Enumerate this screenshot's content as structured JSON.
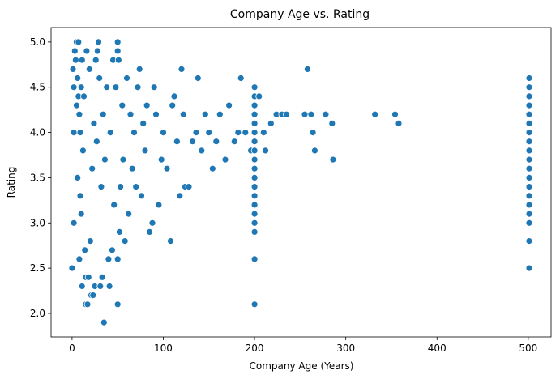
{
  "chart_data": {
    "type": "scatter",
    "title": "Company Age vs. Rating",
    "xlabel": "Company Age (Years)",
    "ylabel": "Rating",
    "xlim": [
      -23,
      525
    ],
    "ylim": [
      1.74,
      5.16
    ],
    "xticks": [
      "0",
      "100",
      "200",
      "300",
      "400",
      "500"
    ],
    "yticks": [
      "2.0",
      "2.5",
      "3.0",
      "3.5",
      "4.0",
      "4.5",
      "5.0"
    ],
    "grid": false,
    "legend": "none",
    "marker_color": "#1f77b4",
    "marker_edge_color": "#ffffff",
    "series": [
      {
        "points": [
          [
            0,
            2.5
          ],
          [
            1,
            4.7
          ],
          [
            2,
            4.5
          ],
          [
            2,
            4.0
          ],
          [
            2,
            3.0
          ],
          [
            3,
            4.9
          ],
          [
            4,
            4.8
          ],
          [
            5,
            5.0
          ],
          [
            5,
            4.3
          ],
          [
            6,
            4.6
          ],
          [
            6,
            3.5
          ],
          [
            7,
            5.0
          ],
          [
            7,
            4.4
          ],
          [
            8,
            4.2
          ],
          [
            8,
            2.6
          ],
          [
            9,
            4.0
          ],
          [
            9,
            3.3
          ],
          [
            10,
            4.5
          ],
          [
            10,
            3.1
          ],
          [
            11,
            4.8
          ],
          [
            11,
            2.3
          ],
          [
            12,
            3.8
          ],
          [
            13,
            4.4
          ],
          [
            14,
            2.7
          ],
          [
            15,
            2.4
          ],
          [
            15,
            2.1
          ],
          [
            16,
            4.9
          ],
          [
            17,
            2.1
          ],
          [
            18,
            2.4
          ],
          [
            19,
            4.7
          ],
          [
            20,
            2.8
          ],
          [
            21,
            2.2
          ],
          [
            22,
            3.6
          ],
          [
            23,
            2.2
          ],
          [
            24,
            4.1
          ],
          [
            25,
            2.3
          ],
          [
            26,
            4.8
          ],
          [
            27,
            3.9
          ],
          [
            28,
            4.9
          ],
          [
            29,
            5.0
          ],
          [
            30,
            4.6
          ],
          [
            31,
            2.3
          ],
          [
            32,
            3.4
          ],
          [
            33,
            2.4
          ],
          [
            34,
            4.2
          ],
          [
            35,
            1.9
          ],
          [
            36,
            3.7
          ],
          [
            38,
            4.5
          ],
          [
            40,
            2.6
          ],
          [
            41,
            2.3
          ],
          [
            42,
            4.0
          ],
          [
            44,
            2.7
          ],
          [
            45,
            4.8
          ],
          [
            46,
            3.2
          ],
          [
            48,
            4.5
          ],
          [
            50,
            5.0
          ],
          [
            50,
            4.9
          ],
          [
            50,
            2.6
          ],
          [
            50,
            2.1
          ],
          [
            51,
            4.8
          ],
          [
            52,
            2.9
          ],
          [
            53,
            3.4
          ],
          [
            55,
            4.3
          ],
          [
            56,
            3.7
          ],
          [
            58,
            2.8
          ],
          [
            60,
            4.6
          ],
          [
            62,
            3.1
          ],
          [
            64,
            4.2
          ],
          [
            66,
            3.6
          ],
          [
            68,
            4.0
          ],
          [
            70,
            3.4
          ],
          [
            72,
            4.5
          ],
          [
            74,
            4.7
          ],
          [
            76,
            3.3
          ],
          [
            78,
            4.1
          ],
          [
            80,
            3.8
          ],
          [
            82,
            4.3
          ],
          [
            85,
            2.9
          ],
          [
            88,
            3.0
          ],
          [
            90,
            4.5
          ],
          [
            92,
            4.2
          ],
          [
            95,
            3.2
          ],
          [
            98,
            3.7
          ],
          [
            100,
            4.0
          ],
          [
            104,
            3.6
          ],
          [
            108,
            2.8
          ],
          [
            110,
            4.3
          ],
          [
            112,
            4.4
          ],
          [
            115,
            3.9
          ],
          [
            118,
            3.3
          ],
          [
            120,
            4.7
          ],
          [
            122,
            4.2
          ],
          [
            124,
            3.4
          ],
          [
            128,
            3.4
          ],
          [
            132,
            3.9
          ],
          [
            136,
            4.0
          ],
          [
            138,
            4.6
          ],
          [
            142,
            3.8
          ],
          [
            146,
            4.2
          ],
          [
            150,
            4.0
          ],
          [
            154,
            3.6
          ],
          [
            158,
            3.9
          ],
          [
            162,
            4.2
          ],
          [
            168,
            3.7
          ],
          [
            172,
            4.3
          ],
          [
            178,
            3.9
          ],
          [
            182,
            4.0
          ],
          [
            185,
            4.6
          ],
          [
            190,
            4.0
          ],
          [
            196,
            3.8
          ],
          [
            200,
            4.5
          ],
          [
            200,
            4.4
          ],
          [
            200,
            4.3
          ],
          [
            200,
            4.2
          ],
          [
            200,
            4.1
          ],
          [
            200,
            4.0
          ],
          [
            200,
            3.9
          ],
          [
            200,
            3.8
          ],
          [
            200,
            3.7
          ],
          [
            200,
            3.6
          ],
          [
            200,
            3.5
          ],
          [
            200,
            3.4
          ],
          [
            200,
            3.3
          ],
          [
            200,
            3.2
          ],
          [
            200,
            3.1
          ],
          [
            200,
            3.0
          ],
          [
            200,
            2.9
          ],
          [
            200,
            2.6
          ],
          [
            200,
            2.1
          ],
          [
            205,
            4.4
          ],
          [
            210,
            4.0
          ],
          [
            212,
            3.8
          ],
          [
            218,
            4.1
          ],
          [
            224,
            4.2
          ],
          [
            230,
            4.2
          ],
          [
            235,
            4.2
          ],
          [
            255,
            4.2
          ],
          [
            258,
            4.7
          ],
          [
            262,
            4.2
          ],
          [
            264,
            4.0
          ],
          [
            266,
            3.8
          ],
          [
            278,
            4.2
          ],
          [
            285,
            4.1
          ],
          [
            286,
            3.7
          ],
          [
            332,
            4.2
          ],
          [
            354,
            4.2
          ],
          [
            358,
            4.1
          ],
          [
            501,
            4.6
          ],
          [
            501,
            4.5
          ],
          [
            501,
            4.4
          ],
          [
            501,
            4.3
          ],
          [
            501,
            4.2
          ],
          [
            501,
            4.1
          ],
          [
            501,
            4.0
          ],
          [
            501,
            3.9
          ],
          [
            501,
            3.8
          ],
          [
            501,
            3.7
          ],
          [
            501,
            3.6
          ],
          [
            501,
            3.5
          ],
          [
            501,
            3.4
          ],
          [
            501,
            3.3
          ],
          [
            501,
            3.2
          ],
          [
            501,
            3.1
          ],
          [
            501,
            3.0
          ],
          [
            501,
            2.8
          ],
          [
            501,
            2.5
          ]
        ]
      }
    ]
  }
}
